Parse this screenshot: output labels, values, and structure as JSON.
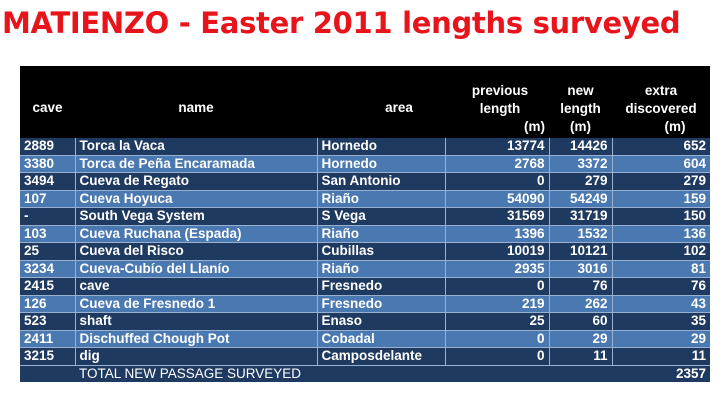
{
  "title": "MATIENZO - Easter 2011 lengths surveyed",
  "headers": {
    "cave": "cave",
    "name": "name",
    "area": "area",
    "previous": [
      "previous",
      "length",
      "(m)"
    ],
    "new": [
      "new",
      "length",
      "(m)"
    ],
    "extra": [
      "extra",
      "discovered",
      "(m)"
    ]
  },
  "rows": [
    {
      "cave": "2889",
      "name": "Torca la Vaca",
      "area": "Hornedo",
      "previous": "13774",
      "new": "14426",
      "extra": "652"
    },
    {
      "cave": "3380",
      "name": "Torca de Peña Encaramada",
      "area": "Hornedo",
      "previous": "2768",
      "new": "3372",
      "extra": "604"
    },
    {
      "cave": "3494",
      "name": "Cueva de Regato",
      "area": "San Antonio",
      "previous": "0",
      "new": "279",
      "extra": "279"
    },
    {
      "cave": "107",
      "name": "Cueva Hoyuca",
      "area": "Riaño",
      "previous": "54090",
      "new": "54249",
      "extra": "159"
    },
    {
      "cave": "-",
      "name": "South Vega System",
      "area": "S Vega",
      "previous": "31569",
      "new": "31719",
      "extra": "150"
    },
    {
      "cave": "103",
      "name": "Cueva Ruchana (Espada)",
      "area": "Riaño",
      "previous": "1396",
      "new": "1532",
      "extra": "136"
    },
    {
      "cave": "25",
      "name": "Cueva del Risco",
      "area": "Cubillas",
      "previous": "10019",
      "new": "10121",
      "extra": "102"
    },
    {
      "cave": "3234",
      "name": "Cueva-Cubío del Llanío",
      "area": "Riaño",
      "previous": "2935",
      "new": "3016",
      "extra": "81"
    },
    {
      "cave": "2415",
      "name": "cave",
      "area": "Fresnedo",
      "previous": "0",
      "new": "76",
      "extra": "76"
    },
    {
      "cave": "126",
      "name": "Cueva de Fresnedo 1",
      "area": "Fresnedo",
      "previous": "219",
      "new": "262",
      "extra": "43"
    },
    {
      "cave": "523",
      "name": "shaft",
      "area": "Enaso",
      "previous": "25",
      "new": "60",
      "extra": "35"
    },
    {
      "cave": "2411",
      "name": "Dischuffed Chough Pot",
      "area": "Cobadal",
      "previous": "0",
      "new": "29",
      "extra": "29"
    },
    {
      "cave": "3215",
      "name": "dig",
      "area": "Camposdelante",
      "previous": "0",
      "new": "11",
      "extra": "11"
    }
  ],
  "total": {
    "label": "TOTAL NEW PASSAGE SURVEYED",
    "value": "2357"
  },
  "colors": {
    "title": "#e8141b",
    "header_bg": "#000000",
    "row_dark": "#1f3a60",
    "row_light": "#4a78b0"
  }
}
